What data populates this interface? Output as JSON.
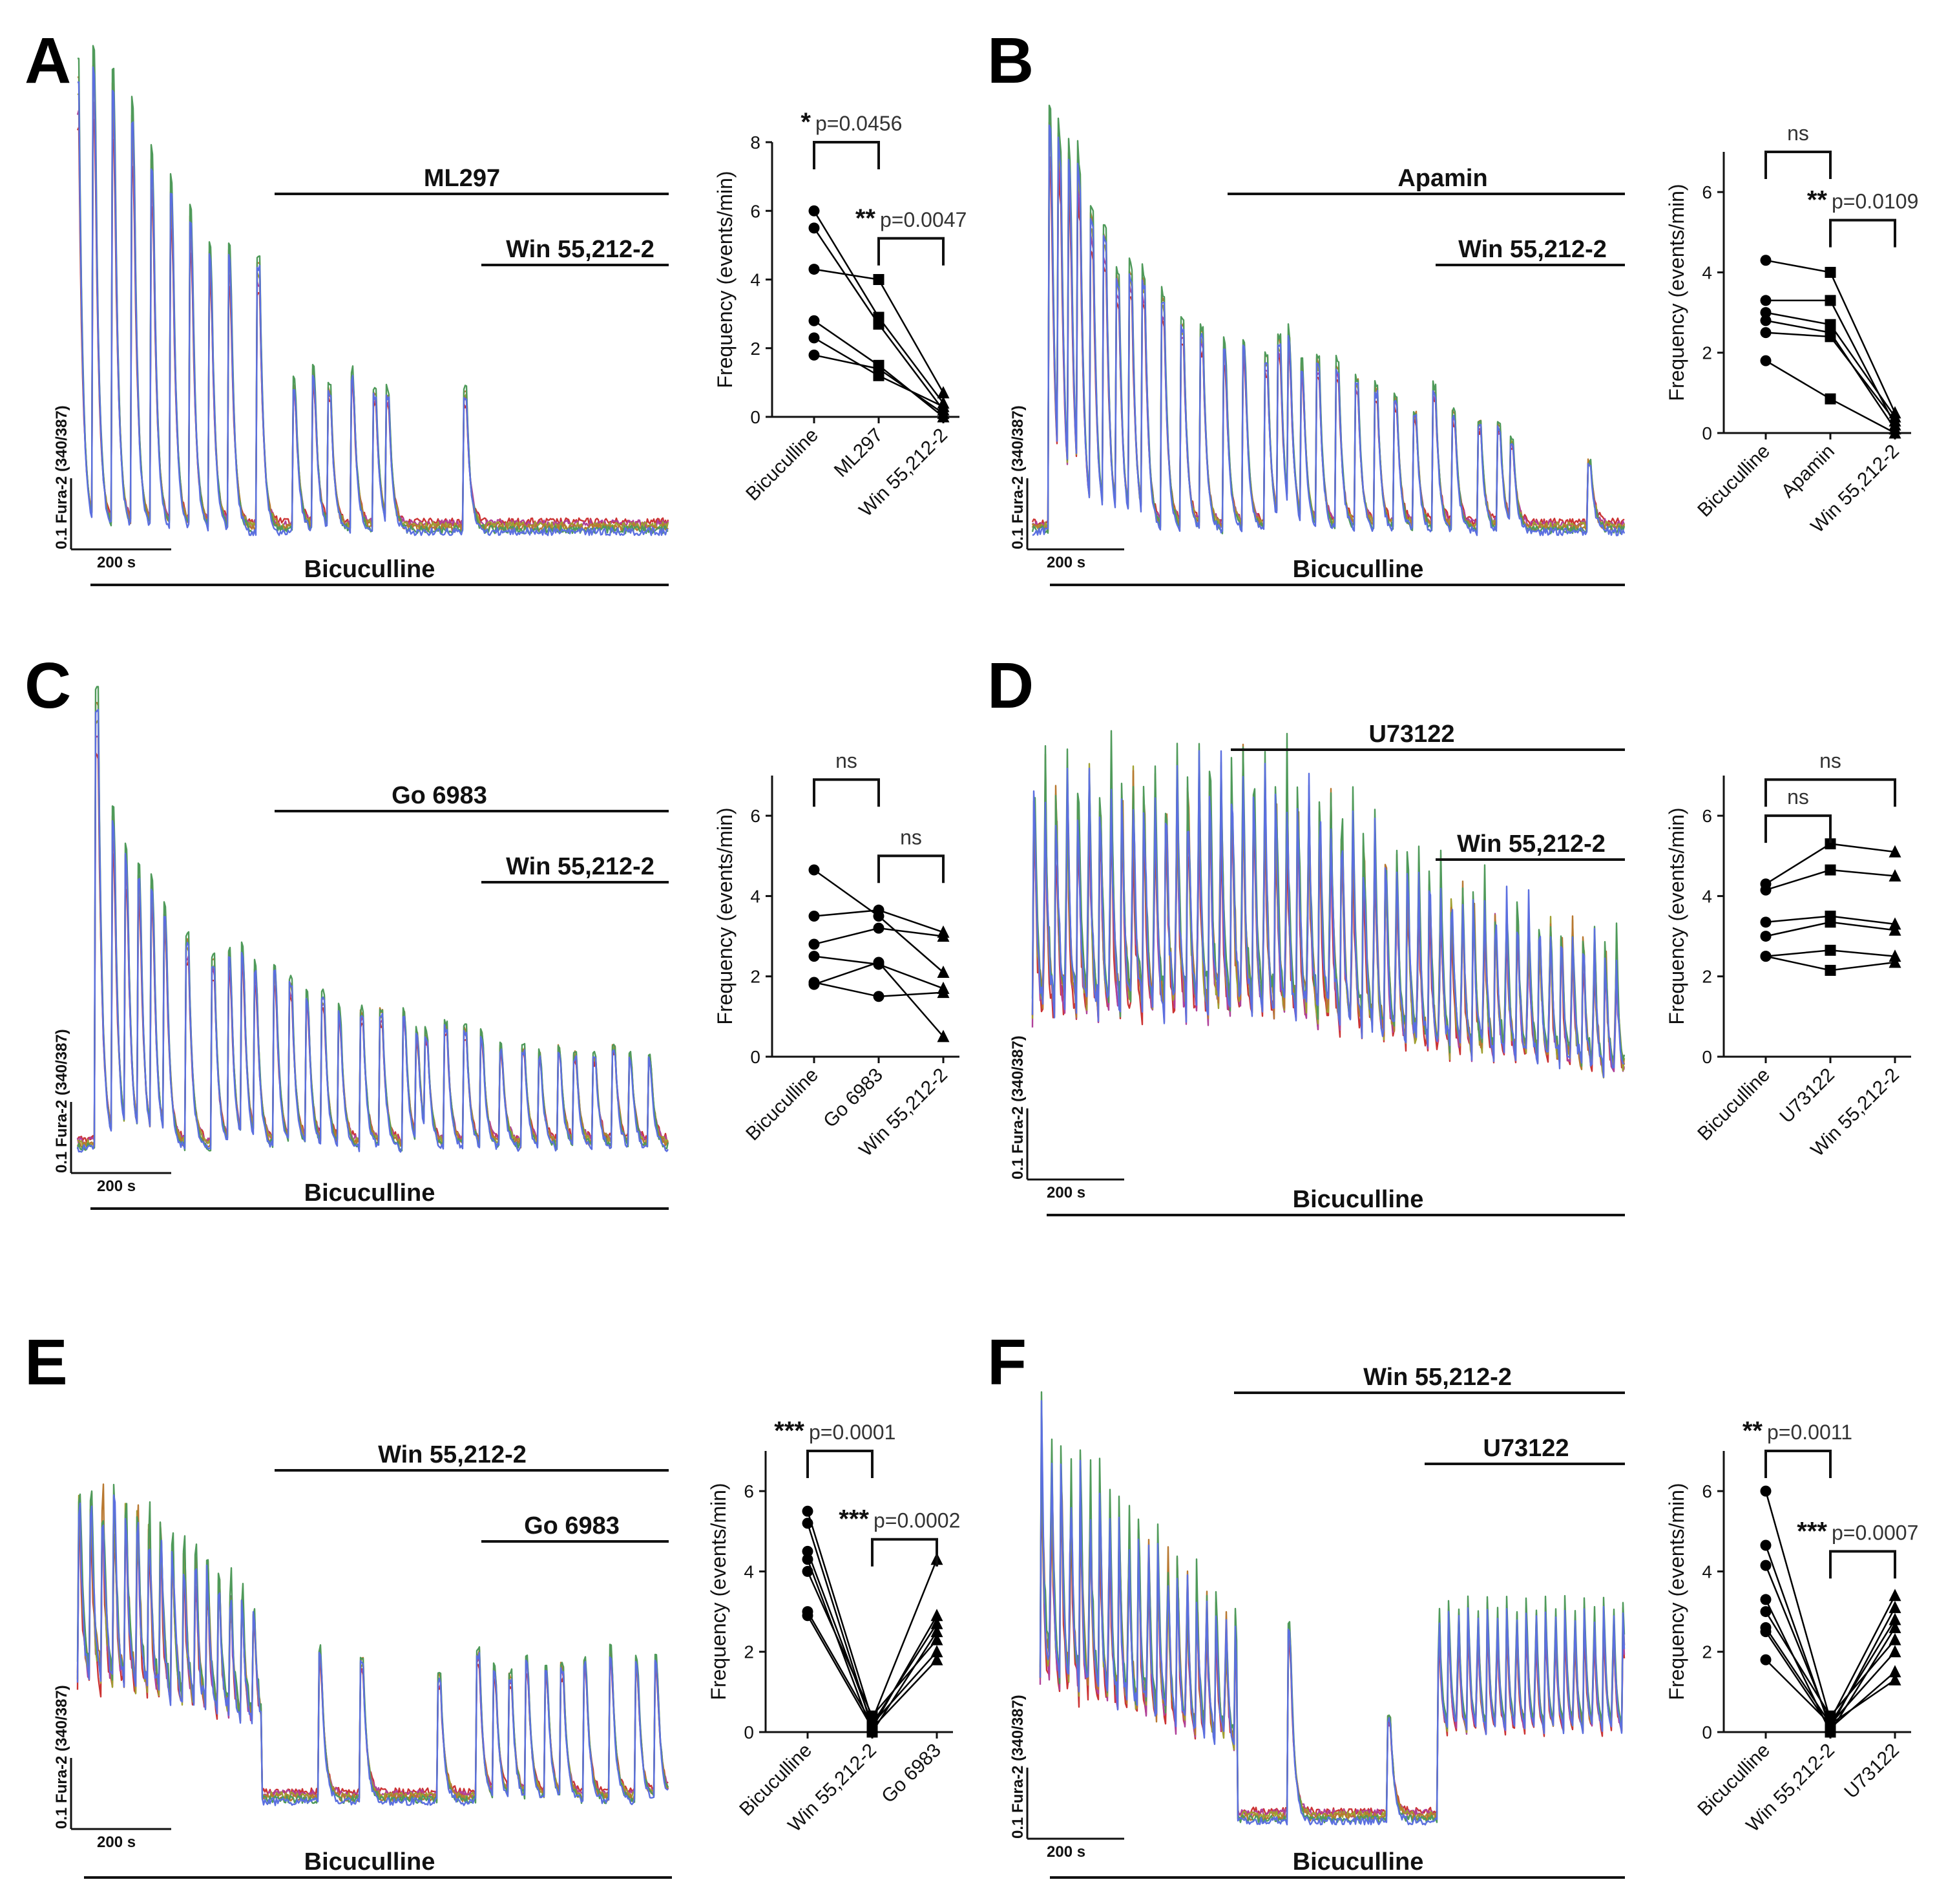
{
  "figure": {
    "trace_colors": [
      "#cc3333",
      "#b0409a",
      "#a0a030",
      "#b87830",
      "#4f9a5a",
      "#5b6fe0"
    ],
    "bottom_bar_label": "Bicuculline",
    "scale_time": "200 s",
    "scale_ratio": "0.1 Fura-2 (340/387)"
  },
  "panels": [
    {
      "letter": "A",
      "drug1": "ML297",
      "drug2": "Win 55,212-2",
      "chart_data": {
        "type": "scatter",
        "ylabel": "Frequency (events/min)",
        "ylim": [
          0,
          8
        ],
        "yticks": [
          0,
          2,
          4,
          6,
          8
        ],
        "categories": [
          "Bicuculline",
          "ML297",
          "Win 55,212-2"
        ],
        "markers": [
          "circle",
          "square",
          "triangle"
        ],
        "series": [
          {
            "values": [
              6.0,
              2.9,
              0.4
            ]
          },
          {
            "values": [
              5.5,
              2.7,
              0.2
            ]
          },
          {
            "values": [
              4.3,
              4.0,
              0.7
            ]
          },
          {
            "values": [
              2.8,
              1.5,
              0.0
            ]
          },
          {
            "values": [
              2.3,
              1.2,
              0.3
            ]
          },
          {
            "values": [
              1.8,
              1.4,
              0.1
            ]
          }
        ],
        "comparisons": [
          {
            "from": 0,
            "to": 1,
            "stars": "*",
            "label": "p=0.0456",
            "level": 8.0
          },
          {
            "from": 1,
            "to": 2,
            "stars": "**",
            "label": "p=0.0047",
            "level": 5.2
          }
        ]
      }
    },
    {
      "letter": "B",
      "drug1": "Apamin",
      "drug2": "Win 55,212-2",
      "chart_data": {
        "type": "scatter",
        "ylabel": "Frequency (events/min)",
        "ylim": [
          0,
          7
        ],
        "yticks": [
          0,
          2,
          4,
          6
        ],
        "categories": [
          "Bicuculline",
          "Apamin",
          "Win 55,212-2"
        ],
        "markers": [
          "circle",
          "square",
          "triangle"
        ],
        "series": [
          {
            "values": [
              4.3,
              4.0,
              0.5
            ]
          },
          {
            "values": [
              3.3,
              3.3,
              0.2
            ]
          },
          {
            "values": [
              3.0,
              2.7,
              0.4
            ]
          },
          {
            "values": [
              2.8,
              2.5,
              0.1
            ]
          },
          {
            "values": [
              2.5,
              2.4,
              0.3
            ]
          },
          {
            "values": [
              1.8,
              0.85,
              0.0
            ]
          }
        ],
        "comparisons": [
          {
            "from": 0,
            "to": 1,
            "stars": "",
            "label": "ns",
            "level": 7.0
          },
          {
            "from": 1,
            "to": 2,
            "stars": "**",
            "label": "p=0.0109",
            "level": 5.3
          }
        ]
      }
    },
    {
      "letter": "C",
      "drug1": "Go 6983",
      "drug2": "Win 55,212-2",
      "chart_data": {
        "type": "scatter",
        "ylabel": "Frequency (events/min)",
        "ylim": [
          0,
          7
        ],
        "yticks": [
          0,
          2,
          4,
          6
        ],
        "categories": [
          "Bicuculline",
          "Go 6983",
          "Win 55,212-2"
        ],
        "markers": [
          "circle",
          "circle",
          "triangle"
        ],
        "series": [
          {
            "values": [
              4.65,
              3.5,
              2.1
            ]
          },
          {
            "values": [
              3.5,
              3.65,
              3.1
            ]
          },
          {
            "values": [
              2.8,
              3.2,
              3.0
            ]
          },
          {
            "values": [
              2.5,
              2.3,
              1.7
            ]
          },
          {
            "values": [
              1.8,
              2.35,
              0.5
            ]
          },
          {
            "values": [
              1.85,
              1.5,
              1.6
            ]
          }
        ],
        "comparisons": [
          {
            "from": 0,
            "to": 1,
            "stars": "",
            "label": "ns",
            "level": 6.9
          },
          {
            "from": 1,
            "to": 2,
            "stars": "",
            "label": "ns",
            "level": 5.0
          }
        ]
      }
    },
    {
      "letter": "D",
      "drug1": "U73122",
      "drug2": "Win 55,212-2",
      "chart_data": {
        "type": "scatter",
        "ylabel": "Frequency (events/min)",
        "ylim": [
          0,
          7
        ],
        "yticks": [
          0,
          2,
          4,
          6
        ],
        "categories": [
          "Bicuculline",
          "U73122",
          "Win 55,212-2"
        ],
        "markers": [
          "circle",
          "square",
          "triangle"
        ],
        "series": [
          {
            "values": [
              4.3,
              5.3,
              5.1
            ]
          },
          {
            "values": [
              4.15,
              4.65,
              4.5
            ]
          },
          {
            "values": [
              3.35,
              3.5,
              3.3
            ]
          },
          {
            "values": [
              3.0,
              3.35,
              3.15
            ]
          },
          {
            "values": [
              2.5,
              2.65,
              2.5
            ]
          },
          {
            "values": [
              2.5,
              2.15,
              2.35
            ]
          }
        ],
        "comparisons": [
          {
            "from": 0,
            "to": 2,
            "stars": "",
            "label": "ns",
            "level": 6.9
          },
          {
            "from": 0,
            "to": 1,
            "stars": "",
            "label": "ns",
            "level": 6.0
          }
        ]
      }
    },
    {
      "letter": "E",
      "drug1": "Win 55,212-2",
      "drug2": "Go 6983",
      "chart_data": {
        "type": "scatter",
        "ylabel": "Frequency (events/min)",
        "ylim": [
          0,
          7
        ],
        "yticks": [
          0,
          2,
          4,
          6
        ],
        "categories": [
          "Bicuculline",
          "Win 55,212-2",
          "Go 6983"
        ],
        "markers": [
          "circle",
          "square",
          "triangle"
        ],
        "series": [
          {
            "values": [
              5.5,
              0.3,
              4.3
            ]
          },
          {
            "values": [
              5.2,
              0.1,
              2.9
            ]
          },
          {
            "values": [
              4.5,
              0.2,
              2.7
            ]
          },
          {
            "values": [
              4.3,
              0.0,
              2.5
            ]
          },
          {
            "values": [
              4.0,
              0.4,
              2.3
            ]
          },
          {
            "values": [
              3.0,
              0.2,
              2.0
            ]
          },
          {
            "values": [
              2.9,
              0.1,
              1.8
            ]
          }
        ],
        "comparisons": [
          {
            "from": 0,
            "to": 1,
            "stars": "***",
            "label": "p=0.0001",
            "level": 7.0
          },
          {
            "from": 1,
            "to": 2,
            "stars": "***",
            "label": "p=0.0002",
            "level": 4.8
          }
        ]
      }
    },
    {
      "letter": "F",
      "drug1": "Win 55,212-2",
      "drug2": "U73122",
      "chart_data": {
        "type": "scatter",
        "ylabel": "Frequency (events/min)",
        "ylim": [
          0,
          7
        ],
        "yticks": [
          0,
          2,
          4,
          6
        ],
        "categories": [
          "Bicuculline",
          "Win 55,212-2",
          "U73122"
        ],
        "markers": [
          "circle",
          "square",
          "triangle"
        ],
        "series": [
          {
            "values": [
              6.0,
              0.3,
              3.4
            ]
          },
          {
            "values": [
              4.65,
              0.1,
              3.1
            ]
          },
          {
            "values": [
              4.15,
              0.2,
              2.8
            ]
          },
          {
            "values": [
              3.3,
              0.0,
              2.6
            ]
          },
          {
            "values": [
              3.0,
              0.4,
              2.3
            ]
          },
          {
            "values": [
              2.6,
              0.2,
              2.0
            ]
          },
          {
            "values": [
              2.5,
              0.1,
              1.5
            ]
          },
          {
            "values": [
              1.8,
              0.2,
              1.3
            ]
          }
        ],
        "comparisons": [
          {
            "from": 0,
            "to": 1,
            "stars": "**",
            "label": "p=0.0011",
            "level": 7.0
          },
          {
            "from": 1,
            "to": 2,
            "stars": "***",
            "label": "p=0.0007",
            "level": 4.5
          }
        ]
      }
    }
  ]
}
